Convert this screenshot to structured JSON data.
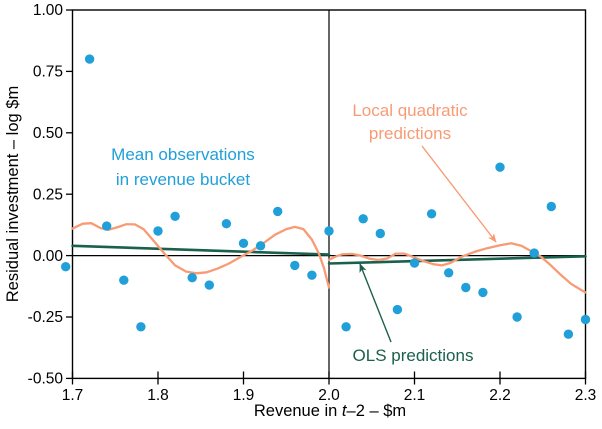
{
  "colors": {
    "blue": "#219fd9",
    "salmon": "#f89b75",
    "green": "#1a604c",
    "axis": "#000000",
    "background": "#ffffff"
  },
  "chart_data": {
    "type": "scatter+line",
    "title": "",
    "ylabel": "Residual investment – log $m",
    "xlabel": {
      "pre": "Revenue in ",
      "italic": "t",
      "post": "–2 – $m"
    },
    "xlim": [
      1.7,
      2.3
    ],
    "ylim": [
      -0.5,
      1.0
    ],
    "x_ticks": [
      "1.7",
      "1.8",
      "1.9",
      "2.0",
      "2.1",
      "2.2",
      "2.3"
    ],
    "x_tick_values": [
      1.7,
      1.8,
      1.9,
      2.0,
      2.1,
      2.2,
      2.3
    ],
    "y_ticks": [
      "1.00",
      "0.75",
      "0.50",
      "0.25",
      "0.00",
      "-0.25",
      "-0.50"
    ],
    "y_tick_values": [
      1.0,
      0.75,
      0.5,
      0.25,
      0.0,
      -0.25,
      -0.5
    ],
    "grid": false,
    "cutoff_x": 2.0,
    "zero_line_y": 0,
    "series": [
      {
        "id": "mean-observations",
        "name": "Mean observations in revenue bucket",
        "type": "scatter",
        "color": "#219fd9",
        "marker_radius": 4.7,
        "points": [
          [
            1.692,
            -0.045
          ],
          [
            1.72,
            0.8
          ],
          [
            1.74,
            0.12
          ],
          [
            1.76,
            -0.1
          ],
          [
            1.78,
            -0.29
          ],
          [
            1.8,
            0.1
          ],
          [
            1.82,
            0.16
          ],
          [
            1.84,
            -0.09
          ],
          [
            1.86,
            -0.12
          ],
          [
            1.88,
            0.13
          ],
          [
            1.9,
            0.05
          ],
          [
            1.92,
            0.04
          ],
          [
            1.94,
            0.18
          ],
          [
            1.96,
            -0.04
          ],
          [
            1.98,
            -0.08
          ],
          [
            2.0,
            0.1
          ],
          [
            2.02,
            -0.29
          ],
          [
            2.04,
            0.15
          ],
          [
            2.06,
            0.09
          ],
          [
            2.08,
            -0.22
          ],
          [
            2.1,
            -0.03
          ],
          [
            2.12,
            0.17
          ],
          [
            2.14,
            -0.07
          ],
          [
            2.16,
            -0.13
          ],
          [
            2.18,
            -0.15
          ],
          [
            2.2,
            0.36
          ],
          [
            2.22,
            -0.25
          ],
          [
            2.24,
            0.01
          ],
          [
            2.26,
            0.2
          ],
          [
            2.28,
            -0.32
          ],
          [
            2.3,
            -0.26
          ]
        ]
      },
      {
        "id": "ols-left",
        "name": "OLS predictions (left of cutoff)",
        "type": "line",
        "color": "#1a604c",
        "width": 2.6,
        "points": [
          [
            1.7,
            0.04
          ],
          [
            2.0,
            0.004
          ]
        ]
      },
      {
        "id": "ols-right",
        "name": "OLS predictions (right of cutoff)",
        "type": "line",
        "color": "#1a604c",
        "width": 2.6,
        "points": [
          [
            2.0,
            -0.032
          ],
          [
            2.3,
            -0.003
          ]
        ]
      },
      {
        "id": "local-quadratic-left",
        "name": "Local quadratic predictions (left of cutoff)",
        "type": "line",
        "color": "#f89b75",
        "width": 2.3,
        "points": [
          [
            1.7,
            0.11
          ],
          [
            1.712,
            0.13
          ],
          [
            1.722,
            0.132
          ],
          [
            1.733,
            0.112
          ],
          [
            1.742,
            0.105
          ],
          [
            1.752,
            0.115
          ],
          [
            1.763,
            0.128
          ],
          [
            1.773,
            0.127
          ],
          [
            1.783,
            0.108
          ],
          [
            1.795,
            0.06
          ],
          [
            1.807,
            0.01
          ],
          [
            1.82,
            -0.04
          ],
          [
            1.833,
            -0.065
          ],
          [
            1.845,
            -0.072
          ],
          [
            1.857,
            -0.068
          ],
          [
            1.87,
            -0.052
          ],
          [
            1.883,
            -0.032
          ],
          [
            1.897,
            -0.005
          ],
          [
            1.91,
            0.02
          ],
          [
            1.923,
            0.05
          ],
          [
            1.937,
            0.085
          ],
          [
            1.95,
            0.108
          ],
          [
            1.96,
            0.117
          ],
          [
            1.97,
            0.108
          ],
          [
            1.98,
            0.065
          ],
          [
            1.988,
            0.01
          ],
          [
            1.994,
            -0.05
          ],
          [
            2.0,
            -0.13
          ]
        ]
      },
      {
        "id": "local-quadratic-right",
        "name": "Local quadratic predictions (right of cutoff)",
        "type": "line",
        "color": "#f89b75",
        "width": 2.3,
        "points": [
          [
            2.0,
            -0.017
          ],
          [
            2.007,
            -0.005
          ],
          [
            2.015,
            0.005
          ],
          [
            2.027,
            0.007
          ],
          [
            2.037,
            0.0
          ],
          [
            2.048,
            -0.013
          ],
          [
            2.058,
            -0.018
          ],
          [
            2.068,
            -0.012
          ],
          [
            2.078,
            0.008
          ],
          [
            2.088,
            0.008
          ],
          [
            2.098,
            -0.005
          ],
          [
            2.11,
            -0.022
          ],
          [
            2.122,
            -0.035
          ],
          [
            2.132,
            -0.04
          ],
          [
            2.142,
            -0.03
          ],
          [
            2.155,
            -0.005
          ],
          [
            2.17,
            0.015
          ],
          [
            2.185,
            0.03
          ],
          [
            2.2,
            0.042
          ],
          [
            2.213,
            0.05
          ],
          [
            2.225,
            0.04
          ],
          [
            2.238,
            0.015
          ],
          [
            2.248,
            -0.005
          ],
          [
            2.258,
            -0.035
          ],
          [
            2.27,
            -0.075
          ],
          [
            2.283,
            -0.115
          ],
          [
            2.295,
            -0.14
          ],
          [
            2.3,
            -0.15
          ]
        ]
      }
    ],
    "annotations": {
      "mean_obs": {
        "line1": "Mean observations",
        "line2": "in revenue bucket",
        "color": "#219fd9"
      },
      "local_quad": {
        "line1": "Local quadratic",
        "line2": "predictions",
        "color": "#f89b75",
        "arrow": {
          "from": [
            422,
            146
          ],
          "to": [
            496,
            242
          ]
        }
      },
      "ols": {
        "line1": "OLS predictions",
        "color": "#1a604c",
        "arrow": {
          "from": [
            391,
            342
          ],
          "to": [
            360,
            264
          ]
        }
      }
    }
  }
}
